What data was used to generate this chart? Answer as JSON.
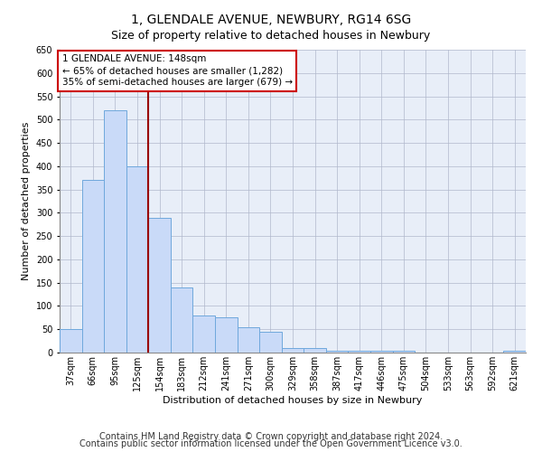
{
  "title": "1, GLENDALE AVENUE, NEWBURY, RG14 6SG",
  "subtitle": "Size of property relative to detached houses in Newbury",
  "xlabel": "Distribution of detached houses by size in Newbury",
  "ylabel": "Number of detached properties",
  "footer_line1": "Contains HM Land Registry data © Crown copyright and database right 2024.",
  "footer_line2": "Contains public sector information licensed under the Open Government Licence v3.0.",
  "annotation_line1": "1 GLENDALE AVENUE: 148sqm",
  "annotation_line2": "← 65% of detached houses are smaller (1,282)",
  "annotation_line3": "35% of semi-detached houses are larger (679) →",
  "categories": [
    "37sqm",
    "66sqm",
    "95sqm",
    "125sqm",
    "154sqm",
    "183sqm",
    "212sqm",
    "241sqm",
    "271sqm",
    "300sqm",
    "329sqm",
    "358sqm",
    "387sqm",
    "417sqm",
    "446sqm",
    "475sqm",
    "504sqm",
    "533sqm",
    "563sqm",
    "592sqm",
    "621sqm"
  ],
  "values": [
    50,
    370,
    520,
    400,
    290,
    140,
    80,
    75,
    55,
    45,
    10,
    10,
    3,
    3,
    3,
    3,
    0,
    0,
    0,
    0,
    3
  ],
  "bar_color": "#c9daf8",
  "bar_edge_color": "#6fa8dc",
  "vline_color": "#990000",
  "vline_x": 3.5,
  "ylim": [
    0,
    650
  ],
  "yticks": [
    0,
    50,
    100,
    150,
    200,
    250,
    300,
    350,
    400,
    450,
    500,
    550,
    600,
    650
  ],
  "bg_color": "#ffffff",
  "plot_bg_color": "#e8eef8",
  "grid_color": "#b0b8cc",
  "title_fontsize": 10,
  "axis_label_fontsize": 8,
  "tick_fontsize": 7,
  "footer_fontsize": 7,
  "annotation_fontsize": 7.5
}
